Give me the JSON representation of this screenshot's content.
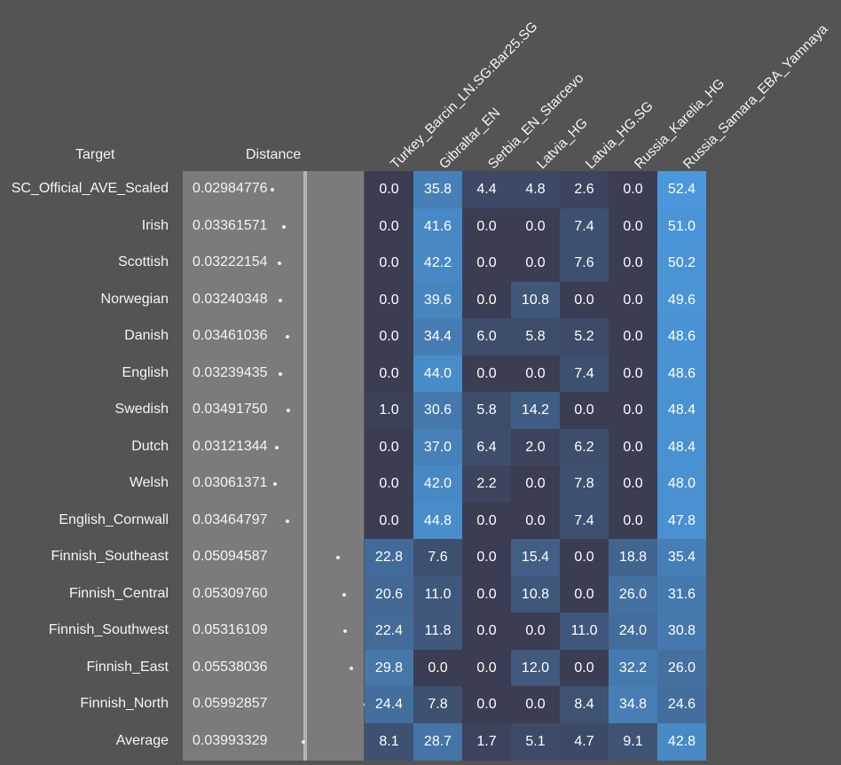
{
  "headers": {
    "target": "Target",
    "distance": "Distance"
  },
  "chart_data": {
    "type": "heatmap",
    "title": "",
    "columns": [
      "Turkey_Barcin_LN.SG:Bar25.SG",
      "Gibraltar_EN",
      "Serbia_EN_Starcevo",
      "Latvia_HG",
      "Latvia_HG.SG",
      "Russia_Karelia_HG",
      "Russia_Samara_EBA_Yamnaya"
    ],
    "rows": [
      {
        "target": "SC_Official_AVE_Scaled",
        "distance": "0.02984776",
        "distance_value": 0.02984776,
        "values": [
          0.0,
          35.8,
          4.4,
          4.8,
          2.6,
          0.0,
          52.4
        ]
      },
      {
        "target": "Irish",
        "distance": "0.03361571",
        "distance_value": 0.03361571,
        "values": [
          0.0,
          41.6,
          0.0,
          0.0,
          7.4,
          0.0,
          51.0
        ]
      },
      {
        "target": "Scottish",
        "distance": "0.03222154",
        "distance_value": 0.03222154,
        "values": [
          0.0,
          42.2,
          0.0,
          0.0,
          7.6,
          0.0,
          50.2
        ]
      },
      {
        "target": "Norwegian",
        "distance": "0.03240348",
        "distance_value": 0.03240348,
        "values": [
          0.0,
          39.6,
          0.0,
          10.8,
          0.0,
          0.0,
          49.6
        ]
      },
      {
        "target": "Danish",
        "distance": "0.03461036",
        "distance_value": 0.03461036,
        "values": [
          0.0,
          34.4,
          6.0,
          5.8,
          5.2,
          0.0,
          48.6
        ]
      },
      {
        "target": "English",
        "distance": "0.03239435",
        "distance_value": 0.03239435,
        "values": [
          0.0,
          44.0,
          0.0,
          0.0,
          7.4,
          0.0,
          48.6
        ]
      },
      {
        "target": "Swedish",
        "distance": "0.03491750",
        "distance_value": 0.0349175,
        "values": [
          1.0,
          30.6,
          5.8,
          14.2,
          0.0,
          0.0,
          48.4
        ]
      },
      {
        "target": "Dutch",
        "distance": "0.03121344",
        "distance_value": 0.03121344,
        "values": [
          0.0,
          37.0,
          6.4,
          2.0,
          6.2,
          0.0,
          48.4
        ]
      },
      {
        "target": "Welsh",
        "distance": "0.03061371",
        "distance_value": 0.03061371,
        "values": [
          0.0,
          42.0,
          2.2,
          0.0,
          7.8,
          0.0,
          48.0
        ]
      },
      {
        "target": "English_Cornwall",
        "distance": "0.03464797",
        "distance_value": 0.03464797,
        "values": [
          0.0,
          44.8,
          0.0,
          0.0,
          7.4,
          0.0,
          47.8
        ]
      },
      {
        "target": "Finnish_Southeast",
        "distance": "0.05094587",
        "distance_value": 0.05094587,
        "values": [
          22.8,
          7.6,
          0.0,
          15.4,
          0.0,
          18.8,
          35.4
        ]
      },
      {
        "target": "Finnish_Central",
        "distance": "0.05309760",
        "distance_value": 0.0530976,
        "values": [
          20.6,
          11.0,
          0.0,
          10.8,
          0.0,
          26.0,
          31.6
        ]
      },
      {
        "target": "Finnish_Southwest",
        "distance": "0.05316109",
        "distance_value": 0.05316109,
        "values": [
          22.4,
          11.8,
          0.0,
          0.0,
          11.0,
          24.0,
          30.8
        ]
      },
      {
        "target": "Finnish_East",
        "distance": "0.05538036",
        "distance_value": 0.05538036,
        "values": [
          29.8,
          0.0,
          0.0,
          12.0,
          0.0,
          32.2,
          26.0
        ]
      },
      {
        "target": "Finnish_North",
        "distance": "0.05992857",
        "distance_value": 0.05992857,
        "values": [
          24.4,
          7.8,
          0.0,
          0.0,
          8.4,
          34.8,
          24.6
        ]
      },
      {
        "target": "Average",
        "distance": "0.03993329",
        "distance_value": 0.03993329,
        "values": [
          8.1,
          28.7,
          1.7,
          5.1,
          4.7,
          9.1,
          42.8
        ]
      }
    ],
    "distance_scale": [
      0.025,
      0.065
    ],
    "value_scale": [
      0,
      55
    ],
    "colors": {
      "background": "#545454",
      "low": "#3b3d53",
      "high": "#4b9be0",
      "dot": "#ededed"
    }
  }
}
